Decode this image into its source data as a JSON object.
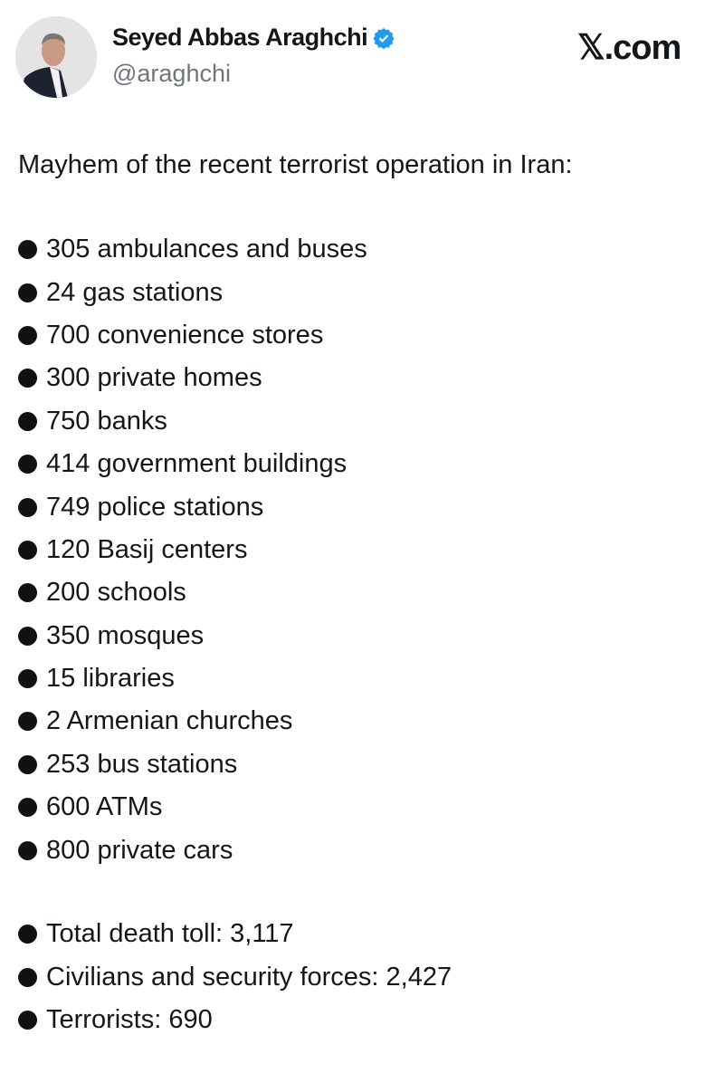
{
  "author": {
    "name": "Seyed Abbas Araghchi",
    "handle": "@araghchi",
    "verified": true,
    "verified_color": "#1d9bf0"
  },
  "brand": "𝕏.com",
  "intro": "Mayhem of the recent terrorist operation in Iran:",
  "items": [
    "305 ambulances and buses",
    "24 gas stations",
    "700 convenience stores",
    "300 private homes",
    "750 banks",
    "414 government buildings",
    "749 police stations",
    "120 Basij centers",
    "200 schools",
    "350 mosques",
    "15 libraries",
    "2 Armenian churches",
    "253 bus stations",
    "600 ATMs",
    "800 private cars"
  ],
  "totals": [
    "Total death toll: 3,117",
    "Civilians and security forces: 2,427",
    "Terrorists: 690"
  ]
}
